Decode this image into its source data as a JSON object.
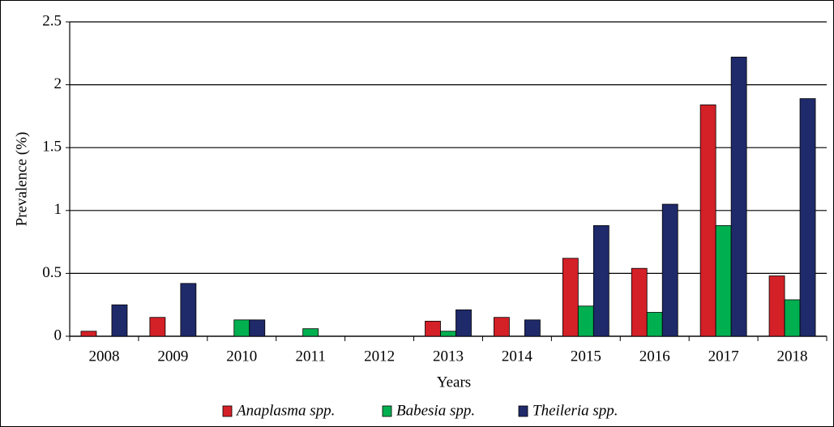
{
  "chart_data": {
    "type": "bar",
    "x_label": "Years",
    "y_label": "Prevalence (%)",
    "categories": [
      "2008",
      "2009",
      "2010",
      "2011",
      "2012",
      "2013",
      "2014",
      "2015",
      "2016",
      "2017",
      "2018"
    ],
    "series": [
      {
        "name": "Anaplasma spp.",
        "color": "#d42027",
        "values": [
          0.04,
          0.15,
          0,
          0,
          0,
          0.12,
          0.15,
          0.62,
          0.54,
          1.84,
          0.48
        ]
      },
      {
        "name": "Babesia spp.",
        "color": "#00b050",
        "values": [
          0,
          0,
          0.13,
          0.06,
          0,
          0.04,
          0,
          0.24,
          0.19,
          0.88,
          0.29
        ]
      },
      {
        "name": "Theileria spp.",
        "color": "#1f2a6b",
        "values": [
          0.25,
          0.42,
          0.13,
          0,
          0,
          0.21,
          0.13,
          0.88,
          1.05,
          2.22,
          1.89
        ]
      }
    ],
    "ylim": [
      0,
      2.5
    ],
    "yticks": [
      0,
      0.5,
      1,
      1.5,
      2,
      2.5
    ],
    "grid": true,
    "legend": "bottom"
  }
}
